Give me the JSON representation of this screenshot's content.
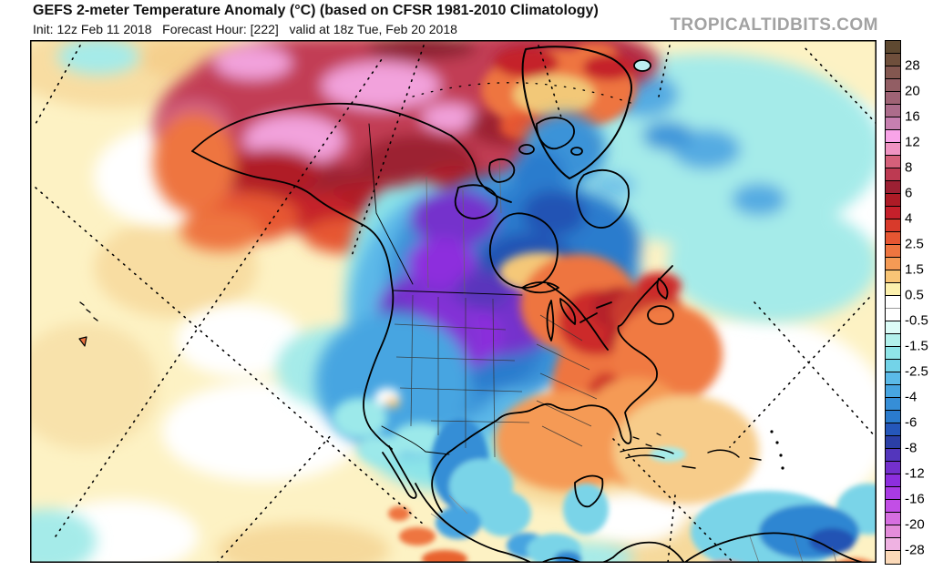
{
  "header": {
    "title": "GEFS 2-meter Temperature Anomaly (°C) (based on CFSR 1981-2010 Climatology)",
    "init_line": "Init: 12z Feb 11 2018   Forecast Hour: [222]   valid at 18z Tue, Feb 20 2018",
    "watermark": "TROPICALTIDBITS.COM"
  },
  "colorbar": {
    "unit": "°C",
    "labels": [
      "28",
      "20",
      "16",
      "12",
      "8",
      "6",
      "4",
      "2.5",
      "1.5",
      "0.5",
      "-0.5",
      "-1.5",
      "-2.5",
      "-4",
      "-6",
      "-8",
      "-12",
      "-16",
      "-20",
      "-28"
    ],
    "band_colors": [
      "#5e4931",
      "#6f4f3c",
      "#835750",
      "#925e64",
      "#9f6375",
      "#ac6c8b",
      "#c77fb0",
      "#f9a4e8",
      "#ef93c2",
      "#d5607a",
      "#bd3a52",
      "#9c2033",
      "#ad1b26",
      "#c5202b",
      "#d83a2b",
      "#e65632",
      "#ee7540",
      "#f49a55",
      "#f8c576",
      "#fcf0ad",
      "#ffffff",
      "#ffffff",
      "#dcfcf7",
      "#b2f1ec",
      "#8fe5e8",
      "#73d3e8",
      "#5bbae8",
      "#47a5e1",
      "#368ed7",
      "#2a7bcd",
      "#2557ba",
      "#2b3fa6",
      "#5336bc",
      "#7430cd",
      "#8d2ede",
      "#a93ae4",
      "#c24ee6",
      "#d66ee0",
      "#e38cda",
      "#efb2e2",
      "#fbd9b8"
    ],
    "zero_divider_color": "#999999",
    "tick_color": "#000000"
  }
}
